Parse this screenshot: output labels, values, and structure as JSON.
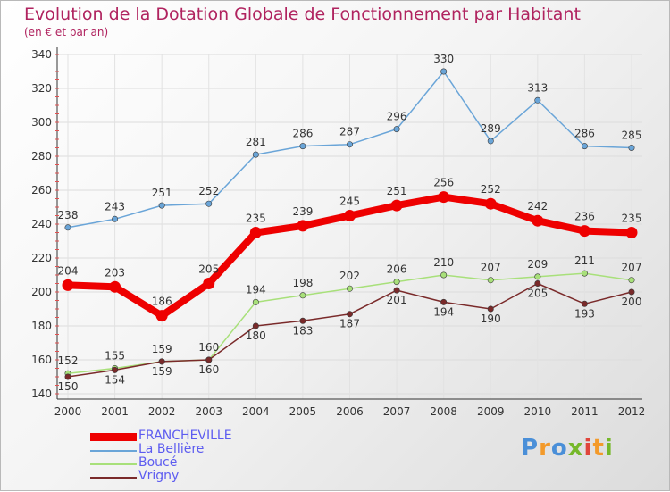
{
  "title": "Evolution de la Dotation Globale de Fonctionnement par Habitant",
  "subtitle": "(en € et par an)",
  "logo_text": "Proxiti",
  "chart_data": {
    "type": "line",
    "x": [
      "2000",
      "2001",
      "2002",
      "2003",
      "2004",
      "2005",
      "2006",
      "2007",
      "2008",
      "2009",
      "2010",
      "2011",
      "2012"
    ],
    "ylim": [
      140,
      340
    ],
    "yticks": [
      140,
      160,
      180,
      200,
      220,
      240,
      260,
      280,
      300,
      320,
      340
    ],
    "grid": true,
    "legend_position": "bottom-left",
    "series": [
      {
        "name": "FRANCHEVILLE",
        "color": "#ee0000",
        "values": [
          204,
          203,
          186,
          205,
          235,
          239,
          245,
          251,
          256,
          252,
          242,
          236,
          235
        ]
      },
      {
        "name": "La Bellière",
        "color": "#6aa5d8",
        "values": [
          238,
          243,
          251,
          252,
          281,
          286,
          287,
          296,
          330,
          289,
          313,
          286,
          285
        ]
      },
      {
        "name": "Boucé",
        "color": "#a8e07a",
        "values": [
          152,
          155,
          159,
          160,
          194,
          198,
          202,
          206,
          210,
          207,
          209,
          211,
          207
        ]
      },
      {
        "name": "Vrigny",
        "color": "#7a2a2a",
        "values": [
          150,
          154,
          159,
          160,
          180,
          183,
          187,
          201,
          194,
          190,
          205,
          193,
          200
        ]
      }
    ]
  }
}
